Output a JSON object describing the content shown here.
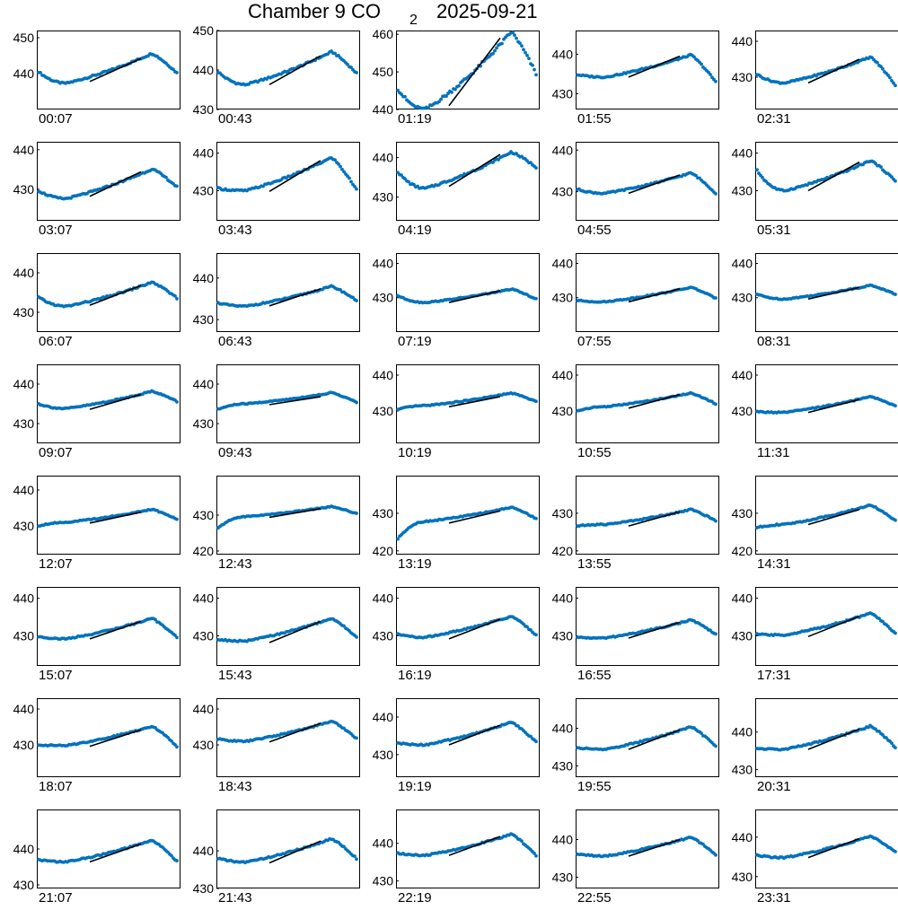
{
  "title": {
    "main": "Chamber 9 CO",
    "sub": "2",
    "date": "2025-09-21"
  },
  "colors": {
    "points": "#0072BD",
    "fit": "#000000",
    "axes": "#000000"
  },
  "chart_data": [
    {
      "label": "00:07",
      "ylim": [
        430,
        452
      ],
      "yticks": [
        440,
        450
      ],
      "start": 440.5,
      "base": 437.3,
      "peak": 445.6,
      "end": 440.2,
      "fit": [
        437.8,
        444.2
      ]
    },
    {
      "label": "00:43",
      "ylim": [
        430,
        450
      ],
      "yticks": [
        430,
        440,
        450
      ],
      "start": 439.5,
      "base": 436.3,
      "peak": 444.6,
      "end": 439.2,
      "fit": [
        436.3,
        443.6
      ]
    },
    {
      "label": "01:19",
      "ylim": [
        440,
        461
      ],
      "yticks": [
        440,
        450,
        460
      ],
      "start": 445.5,
      "base": 440.0,
      "peak": 460.6,
      "end": 449.5,
      "fit": [
        441.0,
        459.0
      ]
    },
    {
      "label": "01:55",
      "ylim": [
        426,
        446
      ],
      "yticks": [
        430,
        440
      ],
      "start": 434.8,
      "base": 434.2,
      "peak": 439.8,
      "end": 433.0,
      "fit": [
        434.2,
        439.5
      ]
    },
    {
      "label": "02:31",
      "ylim": [
        421,
        443
      ],
      "yticks": [
        430,
        440
      ],
      "start": 430.8,
      "base": 428.4,
      "peak": 435.6,
      "end": 427.8,
      "fit": [
        428.4,
        435.0
      ]
    },
    {
      "label": "03:07",
      "ylim": [
        422,
        442
      ],
      "yticks": [
        430,
        440
      ],
      "start": 429.6,
      "base": 427.6,
      "peak": 435.1,
      "end": 430.6,
      "fit": [
        428.2,
        434.4
      ]
    },
    {
      "label": "03:43",
      "ylim": [
        422,
        443
      ],
      "yticks": [
        430,
        440
      ],
      "start": 430.6,
      "base": 430.0,
      "peak": 438.8,
      "end": 430.3,
      "fit": [
        429.8,
        438.0
      ]
    },
    {
      "label": "04:19",
      "ylim": [
        424,
        444
      ],
      "yticks": [
        430,
        440
      ],
      "start": 436.4,
      "base": 432.2,
      "peak": 441.4,
      "end": 437.6,
      "fit": [
        432.7,
        440.8
      ]
    },
    {
      "label": "04:55",
      "ylim": [
        423,
        442
      ],
      "yticks": [
        430,
        440
      ],
      "start": 430.6,
      "base": 429.6,
      "peak": 434.5,
      "end": 429.6,
      "fit": [
        429.6,
        434.0
      ]
    },
    {
      "label": "05:31",
      "ylim": [
        422,
        443
      ],
      "yticks": [
        430,
        440
      ],
      "start": 435.4,
      "base": 430.0,
      "peak": 438.0,
      "end": 432.6,
      "fit": [
        430.0,
        437.6
      ]
    },
    {
      "label": "06:07",
      "ylim": [
        425,
        445
      ],
      "yticks": [
        430,
        440
      ],
      "start": 433.8,
      "base": 431.5,
      "peak": 437.6,
      "end": 433.6,
      "fit": [
        431.8,
        436.8
      ]
    },
    {
      "label": "06:43",
      "ylim": [
        427,
        446
      ],
      "yticks": [
        430,
        440
      ],
      "start": 434.0,
      "base": 433.2,
      "peak": 438.0,
      "end": 434.6,
      "fit": [
        433.3,
        437.4
      ]
    },
    {
      "label": "07:19",
      "ylim": [
        420,
        443
      ],
      "yticks": [
        430,
        440
      ],
      "start": 430.6,
      "base": 428.6,
      "peak": 432.5,
      "end": 429.6,
      "fit": [
        428.6,
        432.0
      ]
    },
    {
      "label": "07:55",
      "ylim": [
        420,
        443
      ],
      "yticks": [
        430,
        440
      ],
      "start": 429.2,
      "base": 428.8,
      "peak": 433.0,
      "end": 429.8,
      "fit": [
        428.8,
        432.6
      ]
    },
    {
      "label": "08:31",
      "ylim": [
        420,
        443
      ],
      "yticks": [
        430,
        440
      ],
      "start": 431.0,
      "base": 429.6,
      "peak": 433.6,
      "end": 431.0,
      "fit": [
        429.6,
        433.0
      ]
    },
    {
      "label": "09:07",
      "ylim": [
        425,
        445
      ],
      "yticks": [
        430,
        440
      ],
      "start": 435.0,
      "base": 433.8,
      "peak": 438.2,
      "end": 435.6,
      "fit": [
        433.6,
        437.4
      ]
    },
    {
      "label": "09:43",
      "ylim": [
        425,
        445
      ],
      "yticks": [
        430,
        440
      ],
      "start": 433.6,
      "base": 435.0,
      "peak": 437.8,
      "end": 435.4,
      "fit": [
        434.8,
        436.8
      ]
    },
    {
      "label": "10:19",
      "ylim": [
        421,
        443
      ],
      "yticks": [
        430,
        440
      ],
      "start": 430.4,
      "base": 431.5,
      "peak": 435.0,
      "end": 432.6,
      "fit": [
        431.2,
        434.0
      ]
    },
    {
      "label": "10:55",
      "ylim": [
        421,
        443
      ],
      "yticks": [
        430,
        440
      ],
      "start": 430.0,
      "base": 431.2,
      "peak": 435.0,
      "end": 432.0,
      "fit": [
        430.8,
        434.6
      ]
    },
    {
      "label": "11:31",
      "ylim": [
        421,
        443
      ],
      "yticks": [
        430,
        440
      ],
      "start": 429.8,
      "base": 429.6,
      "peak": 434.0,
      "end": 431.4,
      "fit": [
        429.6,
        433.2
      ]
    },
    {
      "label": "12:07",
      "ylim": [
        422,
        444
      ],
      "yticks": [
        430,
        440
      ],
      "start": 430.0,
      "base": 431.0,
      "peak": 434.6,
      "end": 431.8,
      "fit": [
        430.8,
        433.8
      ]
    },
    {
      "label": "12:43",
      "ylim": [
        419,
        441
      ],
      "yticks": [
        420,
        430
      ],
      "start": 426.4,
      "base": 429.6,
      "peak": 432.4,
      "end": 430.4,
      "fit": [
        429.4,
        431.8
      ]
    },
    {
      "label": "13:19",
      "ylim": [
        419,
        440
      ],
      "yticks": [
        420,
        430
      ],
      "start": 423.2,
      "base": 427.8,
      "peak": 431.6,
      "end": 428.6,
      "fit": [
        427.4,
        430.6
      ]
    },
    {
      "label": "13:55",
      "ylim": [
        419,
        440
      ],
      "yticks": [
        420,
        430
      ],
      "start": 426.6,
      "base": 427.0,
      "peak": 431.0,
      "end": 428.0,
      "fit": [
        426.6,
        430.4
      ]
    },
    {
      "label": "14:31",
      "ylim": [
        419,
        440
      ],
      "yticks": [
        420,
        430
      ],
      "start": 426.2,
      "base": 427.0,
      "peak": 432.2,
      "end": 428.0,
      "fit": [
        427.0,
        431.0
      ]
    },
    {
      "label": "15:07",
      "ylim": [
        422,
        443
      ],
      "yticks": [
        430,
        440
      ],
      "start": 429.8,
      "base": 429.2,
      "peak": 434.6,
      "end": 429.6,
      "fit": [
        429.2,
        433.8
      ]
    },
    {
      "label": "15:43",
      "ylim": [
        422,
        443
      ],
      "yticks": [
        430,
        440
      ],
      "start": 429.0,
      "base": 428.6,
      "peak": 434.6,
      "end": 429.6,
      "fit": [
        428.2,
        433.8
      ]
    },
    {
      "label": "16:19",
      "ylim": [
        422,
        443
      ],
      "yticks": [
        430,
        440
      ],
      "start": 430.4,
      "base": 429.6,
      "peak": 435.2,
      "end": 430.2,
      "fit": [
        429.2,
        434.4
      ]
    },
    {
      "label": "16:55",
      "ylim": [
        422,
        443
      ],
      "yticks": [
        430,
        440
      ],
      "start": 429.6,
      "base": 429.4,
      "peak": 434.2,
      "end": 430.4,
      "fit": [
        429.4,
        433.6
      ]
    },
    {
      "label": "17:31",
      "ylim": [
        422,
        443
      ],
      "yticks": [
        430,
        440
      ],
      "start": 430.4,
      "base": 430.2,
      "peak": 436.0,
      "end": 430.6,
      "fit": [
        429.8,
        435.2
      ]
    },
    {
      "label": "18:07",
      "ylim": [
        421,
        443
      ],
      "yticks": [
        430,
        440
      ],
      "start": 430.0,
      "base": 429.8,
      "peak": 435.2,
      "end": 429.6,
      "fit": [
        429.6,
        434.2
      ]
    },
    {
      "label": "18:43",
      "ylim": [
        421,
        443
      ],
      "yticks": [
        430,
        440
      ],
      "start": 431.6,
      "base": 431.0,
      "peak": 436.6,
      "end": 431.8,
      "fit": [
        430.8,
        436.0
      ]
    },
    {
      "label": "19:19",
      "ylim": [
        424,
        445
      ],
      "yticks": [
        430,
        440
      ],
      "start": 433.0,
      "base": 432.6,
      "peak": 438.6,
      "end": 433.4,
      "fit": [
        432.6,
        437.8
      ]
    },
    {
      "label": "19:55",
      "ylim": [
        427,
        448
      ],
      "yticks": [
        430,
        440
      ],
      "start": 434.8,
      "base": 434.4,
      "peak": 440.4,
      "end": 435.2,
      "fit": [
        434.4,
        439.6
      ]
    },
    {
      "label": "20:31",
      "ylim": [
        428,
        449
      ],
      "yticks": [
        430,
        440
      ],
      "start": 435.6,
      "base": 435.4,
      "peak": 441.6,
      "end": 436.0,
      "fit": [
        435.4,
        440.8
      ]
    },
    {
      "label": "21:07",
      "ylim": [
        429,
        451
      ],
      "yticks": [
        430,
        440
      ],
      "start": 437.0,
      "base": 436.4,
      "peak": 442.4,
      "end": 436.6,
      "fit": [
        436.4,
        441.4
      ]
    },
    {
      "label": "21:43",
      "ylim": [
        430,
        451
      ],
      "yticks": [
        430,
        440
      ],
      "start": 438.0,
      "base": 437.0,
      "peak": 443.2,
      "end": 438.0,
      "fit": [
        436.8,
        442.6
      ]
    },
    {
      "label": "22:19",
      "ylim": [
        428,
        449
      ],
      "yticks": [
        430,
        440
      ],
      "start": 437.4,
      "base": 436.8,
      "peak": 442.4,
      "end": 436.8,
      "fit": [
        436.8,
        441.8
      ]
    },
    {
      "label": "22:55",
      "ylim": [
        427,
        448
      ],
      "yticks": [
        430,
        440
      ],
      "start": 436.2,
      "base": 435.6,
      "peak": 440.6,
      "end": 436.0,
      "fit": [
        435.6,
        440.0
      ]
    },
    {
      "label": "23:31",
      "ylim": [
        427,
        447
      ],
      "yticks": [
        430,
        440
      ],
      "start": 435.4,
      "base": 434.8,
      "peak": 440.2,
      "end": 436.2,
      "fit": [
        434.8,
        439.6
      ]
    }
  ]
}
